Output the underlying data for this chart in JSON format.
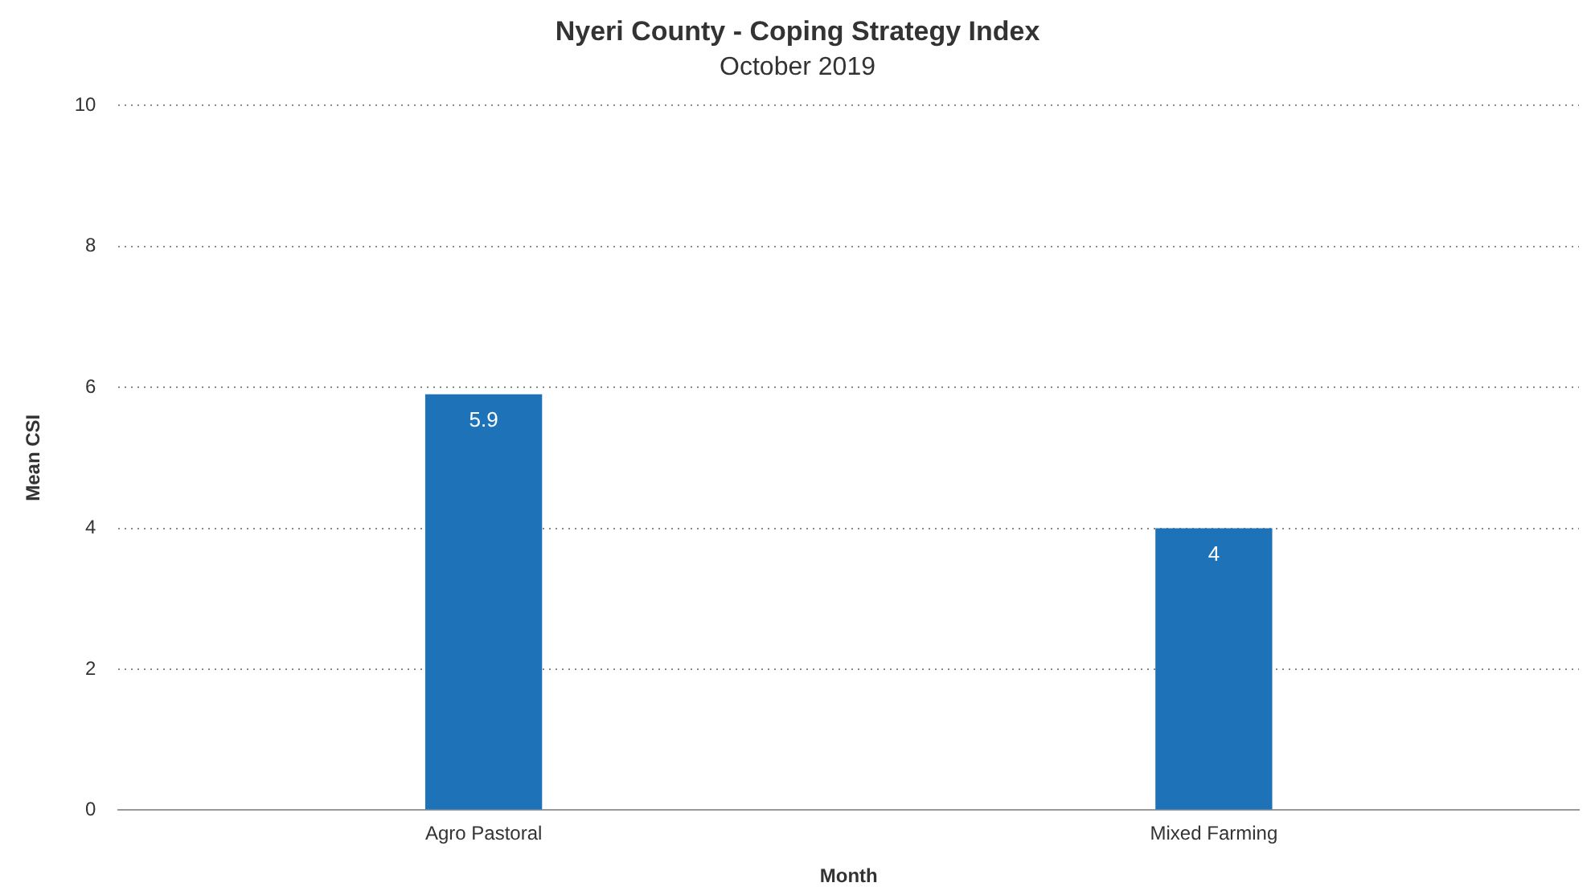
{
  "chart_data": {
    "type": "bar",
    "title": "Nyeri County - Coping Strategy Index",
    "subtitle": "October 2019",
    "xlabel": "Month",
    "ylabel": "Mean CSI",
    "categories": [
      "Agro Pastoral",
      "Mixed Farming"
    ],
    "values": [
      5.9,
      4
    ],
    "color": "#1d72b8",
    "ylim": [
      0,
      10
    ],
    "yticks": [
      0,
      2,
      4,
      6,
      8,
      10
    ],
    "grid": "y",
    "data_labels": true
  }
}
